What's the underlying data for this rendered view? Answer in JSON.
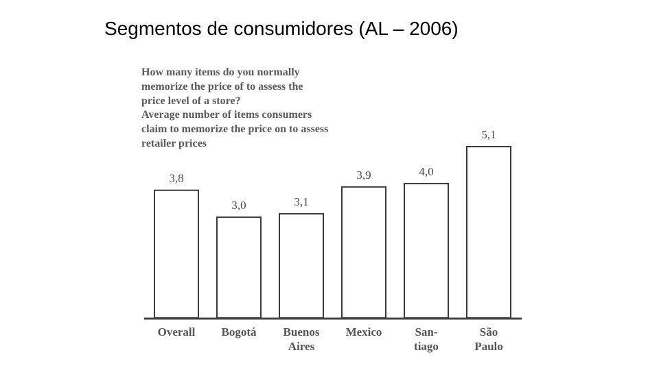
{
  "slide": {
    "title": "Segmentos de consumidores (AL – 2006)"
  },
  "chart_data": {
    "type": "bar",
    "title_lines": [
      "How many items do you normally",
      "memorize the price of to assess the",
      "price level of a store?",
      "Average number of items consumers",
      "claim to memorize the price on to assess",
      "retailer prices"
    ],
    "categories": [
      [
        "Overall"
      ],
      [
        "Bogotá"
      ],
      [
        "Buenos",
        "Aires"
      ],
      [
        "Mexico"
      ],
      [
        "San-",
        "tiago"
      ],
      [
        "São",
        "Paulo"
      ]
    ],
    "values": [
      3.8,
      3.0,
      3.1,
      3.9,
      4.0,
      5.1
    ],
    "value_labels": [
      "3,8",
      "3,0",
      "3,1",
      "3,9",
      "4,0",
      "5,1"
    ],
    "ylim": [
      0,
      5.1
    ],
    "xlabel": "",
    "ylabel": "",
    "grid": false,
    "colors": {
      "bar_fill": "#ffffff",
      "bar_stroke": "#3a3a3a",
      "text": "#4a4a4a"
    }
  }
}
